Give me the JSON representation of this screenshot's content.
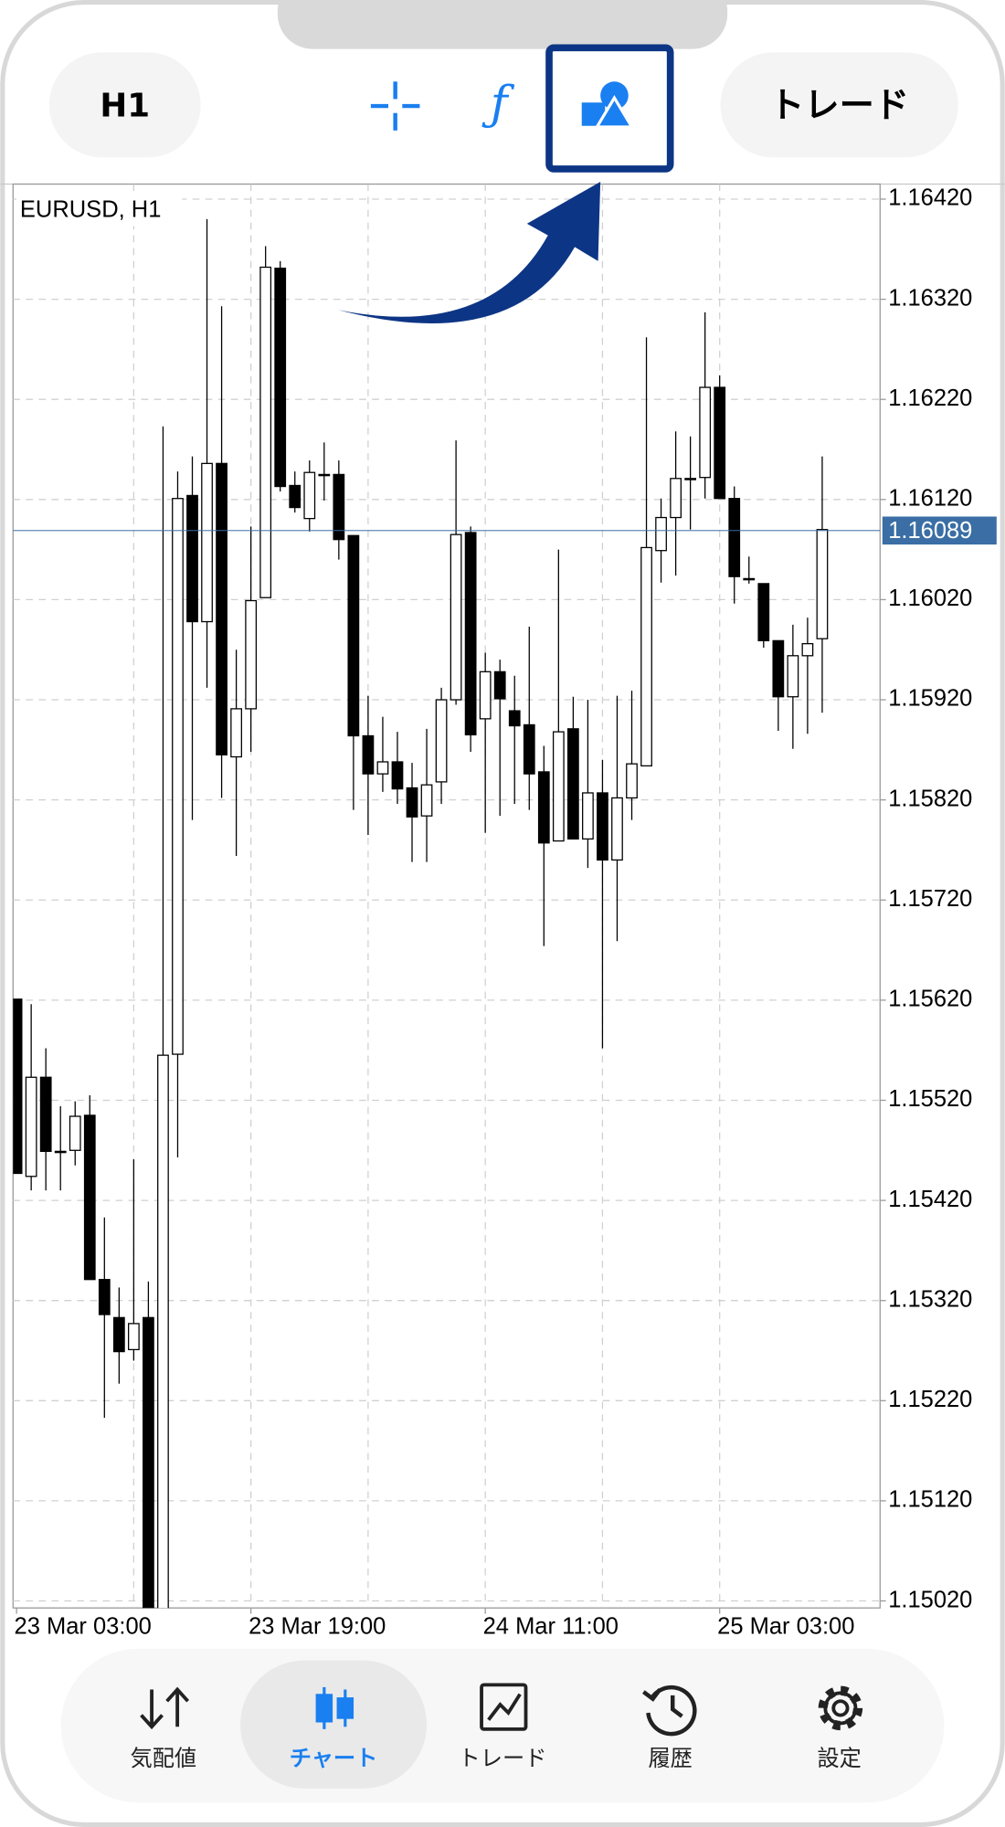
{
  "toolbar": {
    "timeframe": "H1",
    "trade_button": "トレード"
  },
  "chart_data": {
    "type": "candlestick",
    "title": "EURUSD, H1",
    "categories": [
      "23 Mar 03:00",
      null,
      null,
      null,
      null,
      null,
      null,
      null,
      null,
      null,
      null,
      null,
      null,
      null,
      null,
      null,
      "23 Mar 19:00",
      null,
      null,
      null,
      null,
      null,
      null,
      null,
      null,
      null,
      null,
      null,
      null,
      null,
      null,
      null,
      "24 Mar 11:00",
      null,
      null,
      null,
      null,
      null,
      null,
      null,
      null,
      null,
      null,
      null,
      null,
      null,
      null,
      null,
      "25 Mar 03:00",
      null,
      null,
      null,
      null,
      null,
      null,
      null
    ],
    "open": [
      1.15621,
      1.15444,
      1.15543,
      1.15469,
      1.1547,
      1.15505,
      1.15341,
      1.15303,
      1.15271,
      1.15303,
      1.1499,
      1.15566,
      1.16124,
      1.15998,
      1.16156,
      1.15863,
      1.15911,
      1.16022,
      1.16351,
      1.16134,
      1.16101,
      1.16145,
      1.16145,
      1.16084,
      1.15884,
      1.15846,
      1.15858,
      1.15832,
      1.15804,
      1.15838,
      1.1592,
      1.16087,
      1.15901,
      1.15948,
      1.15909,
      1.15895,
      1.15848,
      1.15779,
      1.15891,
      1.15781,
      1.15827,
      1.1576,
      1.15822,
      1.15854,
      1.16069,
      1.16102,
      1.16141,
      1.16142,
      1.16232,
      1.16121,
      1.16041,
      1.16036,
      1.15979,
      1.15923,
      1.15964,
      1.15981
    ],
    "high": [
      1.15621,
      1.15616,
      1.15572,
      1.15514,
      1.15519,
      1.15525,
      1.15403,
      1.15333,
      1.15461,
      1.15339,
      1.16193,
      1.16148,
      1.16163,
      1.164,
      1.16313,
      1.1597,
      1.16093,
      1.16373,
      1.16358,
      1.16148,
      1.16159,
      1.16177,
      1.16159,
      1.16084,
      1.15924,
      1.15903,
      1.15888,
      1.15857,
      1.15891,
      1.15932,
      1.16179,
      1.16093,
      1.15967,
      1.1596,
      1.15944,
      1.15993,
      1.15874,
      1.1607,
      1.15923,
      1.1592,
      1.1586,
      1.15924,
      1.15929,
      1.16282,
      1.16121,
      1.16188,
      1.16183,
      1.16307,
      1.16244,
      1.16133,
      1.16063,
      1.16036,
      1.15979,
      1.15995,
      1.16002,
      1.16163
    ],
    "low": [
      1.15447,
      1.1543,
      1.1543,
      1.1543,
      1.15455,
      1.15341,
      1.15203,
      1.15237,
      1.1526,
      1.1496,
      1.1496,
      1.15463,
      1.158,
      1.15932,
      1.15822,
      1.15764,
      1.15868,
      1.16022,
      1.16128,
      1.16107,
      1.16088,
      1.16119,
      1.1606,
      1.1581,
      1.15785,
      1.15828,
      1.15816,
      1.15758,
      1.15758,
      1.15816,
      1.15915,
      1.15868,
      1.15787,
      1.15804,
      1.15816,
      1.1581,
      1.15674,
      1.15779,
      1.15781,
      1.15752,
      1.15572,
      1.15679,
      1.158,
      1.15854,
      1.16037,
      1.16044,
      1.1609,
      1.16121,
      1.16121,
      1.16016,
      1.16036,
      1.15972,
      1.15889,
      1.15871,
      1.15886,
      1.15907
    ],
    "close": [
      1.15447,
      1.15543,
      1.15469,
      1.15468,
      1.15504,
      1.15341,
      1.15306,
      1.15269,
      1.15297,
      1.1498,
      1.15565,
      1.16121,
      1.15998,
      1.16156,
      1.15865,
      1.15911,
      1.16019,
      1.16352,
      1.16133,
      1.16112,
      1.16147,
      1.16145,
      1.1608,
      1.15884,
      1.15846,
      1.15858,
      1.15831,
      1.15803,
      1.15835,
      1.1592,
      1.16085,
      1.15885,
      1.15948,
      1.15921,
      1.15894,
      1.15846,
      1.15777,
      1.15888,
      1.15781,
      1.15827,
      1.1576,
      1.15822,
      1.15856,
      1.16072,
      1.16102,
      1.16141,
      1.16141,
      1.16232,
      1.16121,
      1.16043,
      1.16041,
      1.15979,
      1.15923,
      1.15964,
      1.15976,
      1.1609
    ],
    "current_price": 1.16089,
    "up_color": "#ffffff",
    "down_color": "#000000",
    "price_line_color": "#3a6ea5",
    "ylim": [
      1.15013,
      1.16435
    ],
    "yticks": [
      {
        "value": 1.1642,
        "label": "1.16420"
      },
      {
        "value": 1.1632,
        "label": "1.16320"
      },
      {
        "value": 1.1622,
        "label": "1.16220"
      },
      {
        "value": 1.1612,
        "label": "1.16120"
      },
      {
        "value": 1.1602,
        "label": "1.16020"
      },
      {
        "value": 1.1592,
        "label": "1.15920"
      },
      {
        "value": 1.1582,
        "label": "1.15820"
      },
      {
        "value": 1.1572,
        "label": "1.15720"
      },
      {
        "value": 1.1562,
        "label": "1.15620"
      },
      {
        "value": 1.1552,
        "label": "1.15520"
      },
      {
        "value": 1.1542,
        "label": "1.15420"
      },
      {
        "value": 1.1532,
        "label": "1.15320"
      },
      {
        "value": 1.1522,
        "label": "1.15220"
      },
      {
        "value": 1.1512,
        "label": "1.15120"
      },
      {
        "value": 1.1502,
        "label": "1.15020"
      }
    ],
    "grid": true
  },
  "nav": {
    "items": [
      "気配値",
      "チャート",
      "トレード",
      "履歴",
      "設定"
    ]
  }
}
